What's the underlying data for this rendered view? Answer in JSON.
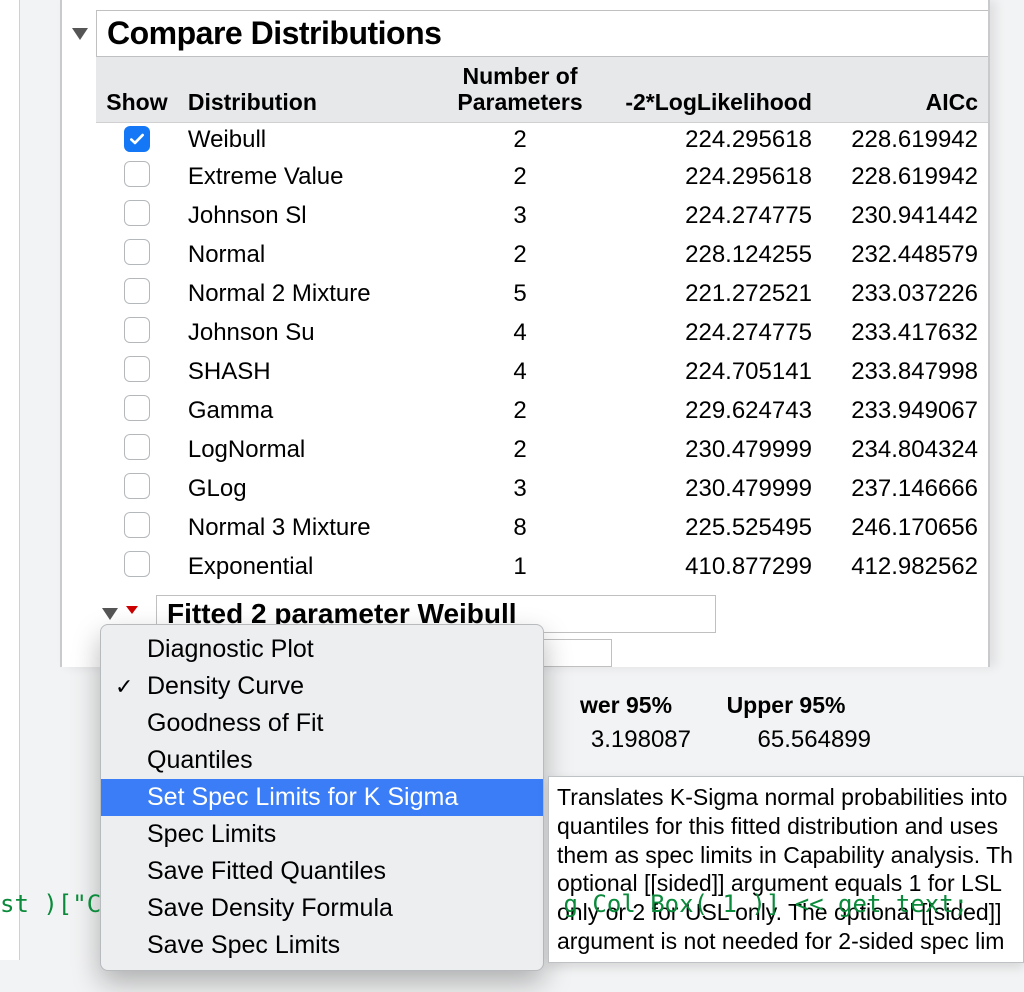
{
  "section": {
    "title": "Compare Distributions",
    "headers": {
      "show": "Show",
      "distribution": "Distribution",
      "number_of_parameters_l1": "Number of",
      "number_of_parameters_l2": "Parameters",
      "log_likelihood": "-2*LogLikelihood",
      "aicc": "AICc"
    },
    "rows": [
      {
        "checked": true,
        "dist": "Weibull",
        "np": "2",
        "ll": "224.295618",
        "aicc": "228.619942"
      },
      {
        "checked": false,
        "dist": "Extreme Value",
        "np": "2",
        "ll": "224.295618",
        "aicc": "228.619942"
      },
      {
        "checked": false,
        "dist": "Johnson Sl",
        "np": "3",
        "ll": "224.274775",
        "aicc": "230.941442"
      },
      {
        "checked": false,
        "dist": "Normal",
        "np": "2",
        "ll": "228.124255",
        "aicc": "232.448579"
      },
      {
        "checked": false,
        "dist": "Normal 2 Mixture",
        "np": "5",
        "ll": "221.272521",
        "aicc": "233.037226"
      },
      {
        "checked": false,
        "dist": "Johnson Su",
        "np": "4",
        "ll": "224.274775",
        "aicc": "233.417632"
      },
      {
        "checked": false,
        "dist": "SHASH",
        "np": "4",
        "ll": "224.705141",
        "aicc": "233.847998"
      },
      {
        "checked": false,
        "dist": "Gamma",
        "np": "2",
        "ll": "229.624743",
        "aicc": "233.949067"
      },
      {
        "checked": false,
        "dist": "LogNormal",
        "np": "2",
        "ll": "230.479999",
        "aicc": "234.804324"
      },
      {
        "checked": false,
        "dist": "GLog",
        "np": "3",
        "ll": "230.479999",
        "aicc": "237.146666"
      },
      {
        "checked": false,
        "dist": "Normal 3 Mixture",
        "np": "8",
        "ll": "225.525495",
        "aicc": "246.170656"
      },
      {
        "checked": false,
        "dist": "Exponential",
        "np": "1",
        "ll": "410.877299",
        "aicc": "412.982562"
      }
    ],
    "header_bg": "#e6e8ea",
    "row_bg": "#ffffff",
    "checkbox_checked_color": "#1478f6",
    "checkbox_border_color": "#b5b8bb"
  },
  "subsection": {
    "title": "Fitted 2 parameter Weibull",
    "peek_headers": {
      "lower": "wer 95%",
      "upper": "Upper 95%"
    },
    "peek_values": {
      "lower": "3.198087",
      "upper": "65.564899"
    }
  },
  "popup": {
    "items": [
      {
        "label": "Diagnostic Plot",
        "checked": false,
        "selected": false
      },
      {
        "label": "Density Curve",
        "checked": true,
        "selected": false
      },
      {
        "label": "Goodness of Fit",
        "checked": false,
        "selected": false
      },
      {
        "label": "Quantiles",
        "checked": false,
        "selected": false
      },
      {
        "label": "Set Spec Limits for K Sigma",
        "checked": false,
        "selected": true
      },
      {
        "label": "Spec Limits",
        "checked": false,
        "selected": false
      },
      {
        "label": "Save Fitted Quantiles",
        "checked": false,
        "selected": false
      },
      {
        "label": "Save Density Formula",
        "checked": false,
        "selected": false
      },
      {
        "label": "Save Spec Limits",
        "checked": false,
        "selected": false
      }
    ],
    "bg": "#eceef0",
    "highlight_bg": "#3a7df6",
    "highlight_fg": "#ffffff"
  },
  "tooltip": {
    "text": "Translates K-Sigma normal probabilities into quantiles for this fitted distribution and uses them as spec limits in Capability analysis. Th optional [[sided]] argument equals 1 for LSL only or 2 for USL only. The optional [[sided]] argument is not needed for 2-sided spec lim"
  },
  "code": {
    "line1": "st )[\"C                                g Col Box( 1 )] << get text;",
    "line2": "     \"\\ \"\\"
  },
  "colors": {
    "panel_border": "#c8cacc",
    "code_color": "#0a8a3a"
  }
}
